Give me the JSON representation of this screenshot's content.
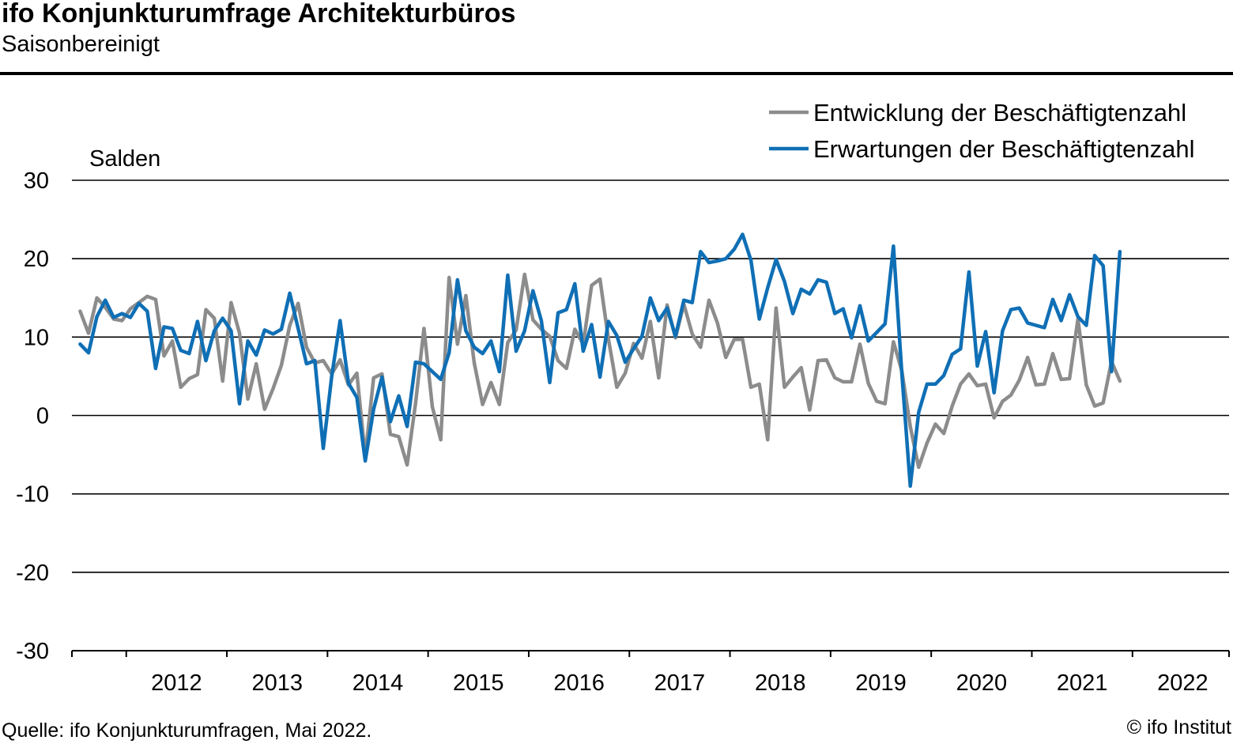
{
  "header": {
    "title": "ifo Konjunkturumfrage Architekturbüros",
    "subtitle": "Saisonbereinigt"
  },
  "footer": {
    "source": "Quelle: ifo Konjunkturumfragen, Mai 2022.",
    "copyright": "© ifo Institut"
  },
  "chart_data": {
    "type": "line",
    "ylabel": "Salden",
    "ylim": [
      -30,
      30
    ],
    "yticks": [
      30,
      20,
      10,
      0,
      -10,
      -20,
      -30
    ],
    "xlim": [
      2011.46,
      2022.96
    ],
    "year_labels": [
      "2012",
      "2013",
      "2014",
      "2015",
      "2016",
      "2017",
      "2018",
      "2019",
      "2020",
      "2021",
      "2022"
    ],
    "grid": true,
    "legend_position": "top-right",
    "series": [
      {
        "name": "Entwicklung der Beschäftigtenzahl",
        "color": "#8c8c8c",
        "start": "2011-07",
        "values": [
          13.3,
          10.5,
          15.0,
          13.8,
          12.3,
          12.1,
          13.6,
          14.4,
          15.2,
          14.8,
          7.6,
          9.5,
          3.6,
          4.7,
          5.2,
          13.5,
          12.4,
          4.4,
          14.4,
          10.5,
          2.1,
          6.6,
          0.8,
          3.4,
          6.4,
          11.5,
          14.3,
          8.7,
          6.7,
          7.0,
          5.3,
          7.1,
          3.9,
          5.4,
          -5.2,
          4.8,
          5.3,
          -2.4,
          -2.7,
          -6.3,
          1.5,
          11.1,
          1.1,
          -3.1,
          17.6,
          9.1,
          15.3,
          6.7,
          1.4,
          4.2,
          1.4,
          9.3,
          10.9,
          18.0,
          12.2,
          11.0,
          10.1,
          7.0,
          6.0,
          11.0,
          9.1,
          16.6,
          17.4,
          9.8,
          3.6,
          5.4,
          9.2,
          7.3,
          12.0,
          4.8,
          14.1,
          9.9,
          14.2,
          10.4,
          8.7,
          14.7,
          11.8,
          7.4,
          9.7,
          9.7,
          3.6,
          4.0,
          -3.1,
          13.7,
          3.6,
          4.9,
          6.1,
          0.7,
          7.0,
          7.1,
          4.8,
          4.3,
          4.3,
          9.1,
          4.1,
          1.8,
          1.5,
          9.4,
          5.7,
          -1.4,
          -6.6,
          -3.5,
          -1.1,
          -2.3,
          1.2,
          4.0,
          5.3,
          3.8,
          4.0,
          -0.3,
          1.8,
          2.6,
          4.5,
          7.4,
          3.9,
          4.0,
          7.9,
          4.6,
          4.7,
          12.3,
          3.9,
          1.2,
          1.6,
          6.9,
          4.4
        ]
      },
      {
        "name": "Erwartungen der Beschäftigtenzahl",
        "color": "#0f6fb5",
        "start": "2011-07",
        "values": [
          9.1,
          8.0,
          12.6,
          14.7,
          12.5,
          13.0,
          12.5,
          14.3,
          13.3,
          6.0,
          11.3,
          11.1,
          8.3,
          7.9,
          12.0,
          7.0,
          10.8,
          12.4,
          10.8,
          1.5,
          9.5,
          7.7,
          10.9,
          10.4,
          11.0,
          15.6,
          11.1,
          6.6,
          7.0,
          -4.2,
          5.0,
          12.1,
          4.1,
          2.3,
          -5.8,
          0.8,
          4.9,
          -0.8,
          2.5,
          -1.4,
          6.8,
          6.6,
          5.6,
          4.6,
          8.0,
          17.3,
          10.8,
          8.7,
          7.9,
          9.5,
          5.6,
          17.9,
          8.2,
          10.8,
          15.9,
          12.1,
          4.2,
          13.1,
          13.5,
          16.8,
          8.2,
          11.6,
          4.9,
          12.0,
          10.2,
          6.8,
          8.5,
          10.1,
          15.0,
          12.1,
          13.7,
          10.1,
          14.7,
          14.4,
          20.9,
          19.5,
          19.7,
          20.0,
          21.2,
          23.1,
          19.8,
          12.3,
          16.3,
          19.9,
          17.1,
          13.0,
          16.1,
          15.5,
          17.3,
          17.0,
          13.0,
          13.6,
          9.9,
          14.0,
          9.5,
          10.6,
          11.7,
          21.6,
          5.4,
          -9.0,
          0.4,
          4.0,
          4.0,
          5.1,
          7.8,
          8.5,
          18.3,
          6.3,
          10.7,
          2.9,
          10.8,
          13.5,
          13.7,
          11.8,
          11.5,
          11.2,
          14.8,
          12.1,
          15.4,
          12.6,
          11.5,
          20.4,
          19.1,
          5.6,
          20.9
        ]
      }
    ]
  }
}
